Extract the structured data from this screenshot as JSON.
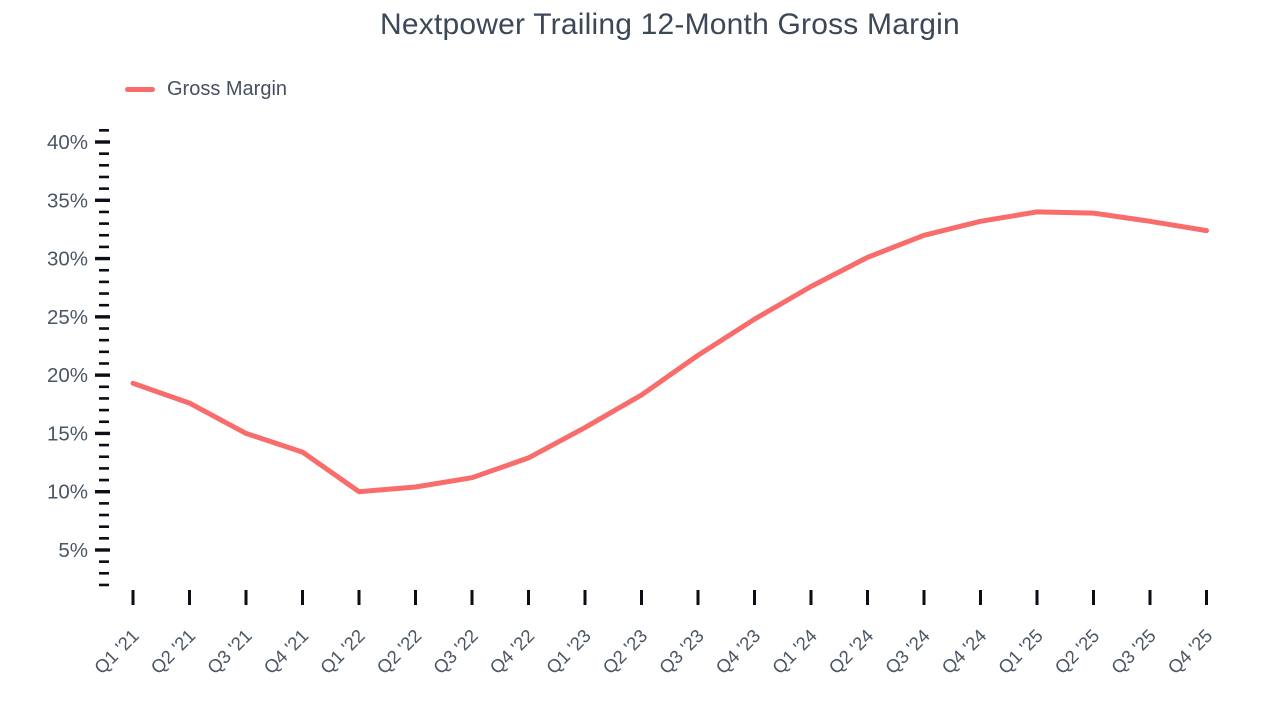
{
  "header": {
    "title": "Nextpower Trailing 12-Month Gross Margin"
  },
  "legend": {
    "items": [
      {
        "label": "Gross Margin",
        "color": "#f96c6c"
      }
    ]
  },
  "chart_data": {
    "type": "line",
    "title": "Nextpower Trailing 12-Month Gross Margin",
    "categories": [
      "Q1 '21",
      "Q2 '21",
      "Q3 '21",
      "Q4 '21",
      "Q1 '22",
      "Q2 '22",
      "Q3 '22",
      "Q4 '22",
      "Q1 '23",
      "Q2 '23",
      "Q3 '23",
      "Q4 '23",
      "Q1 '24",
      "Q2 '24",
      "Q3 '24",
      "Q4 '24",
      "Q1 '25",
      "Q2 '25",
      "Q3 '25",
      "Q4 '25"
    ],
    "series": [
      {
        "name": "Gross Margin",
        "values": [
          19.3,
          17.6,
          15.0,
          13.4,
          10.0,
          10.4,
          11.2,
          12.9,
          15.5,
          18.3,
          21.7,
          24.8,
          27.6,
          30.1,
          32.0,
          33.2,
          34.0,
          33.9,
          33.2,
          32.4
        ]
      }
    ],
    "xlabel": "",
    "ylabel": "",
    "y_axis": {
      "unit": "%",
      "major_tick_values": [
        5,
        10,
        15,
        20,
        25,
        30,
        35,
        40
      ],
      "major_tick_labels": [
        "5%",
        "10%",
        "15%",
        "20%",
        "25%",
        "30%",
        "35%",
        "40%"
      ],
      "minor_tick_step": 1,
      "shown_min": 2,
      "shown_max": 41
    },
    "grid": false,
    "legend_position": "top-left",
    "line_color": "#f96c6c",
    "tick_color": "#0b0e14",
    "axis_label_color": "#4b5665",
    "title_color": "#3c4757"
  }
}
